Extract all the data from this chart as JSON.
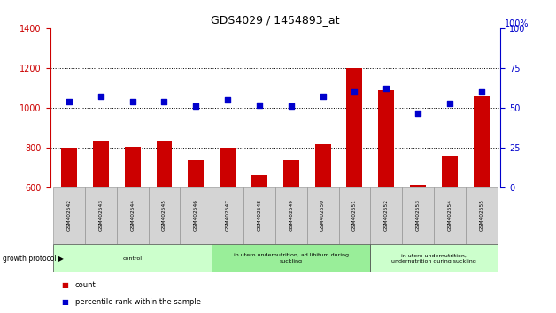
{
  "title": "GDS4029 / 1454893_at",
  "samples": [
    "GSM402542",
    "GSM402543",
    "GSM402544",
    "GSM402545",
    "GSM402546",
    "GSM402547",
    "GSM402548",
    "GSM402549",
    "GSM402550",
    "GSM402551",
    "GSM402552",
    "GSM402553",
    "GSM402554",
    "GSM402555"
  ],
  "counts": [
    800,
    830,
    805,
    835,
    740,
    800,
    665,
    740,
    820,
    1200,
    1090,
    615,
    760,
    1060
  ],
  "percentiles": [
    54,
    57,
    54,
    54,
    51,
    55,
    52,
    51,
    57,
    60,
    62,
    47,
    53,
    60
  ],
  "ylim_left": [
    600,
    1400
  ],
  "ylim_right": [
    0,
    100
  ],
  "yticks_left": [
    600,
    800,
    1000,
    1200,
    1400
  ],
  "yticks_right": [
    0,
    25,
    50,
    75,
    100
  ],
  "groups": [
    {
      "label": "control",
      "start": 0,
      "end": 5,
      "color": "#ccffcc"
    },
    {
      "label": "in utero undernutrition, ad libitum during\nsuckling",
      "start": 5,
      "end": 10,
      "color": "#99ee99"
    },
    {
      "label": "in utero undernutrition,\nundernutrition during suckling",
      "start": 10,
      "end": 14,
      "color": "#ccffcc"
    }
  ],
  "bar_color": "#cc0000",
  "dot_color": "#0000cc",
  "count_label": "count",
  "percentile_label": "percentile rank within the sample",
  "protocol_label": "growth protocol",
  "background_color": "#ffffff",
  "plot_bg_color": "#ffffff",
  "left_axis_color": "#cc0000",
  "right_axis_color": "#0000cc",
  "bar_bottom": 600,
  "dot_scale": 14,
  "sample_box_color": "#d4d4d4"
}
